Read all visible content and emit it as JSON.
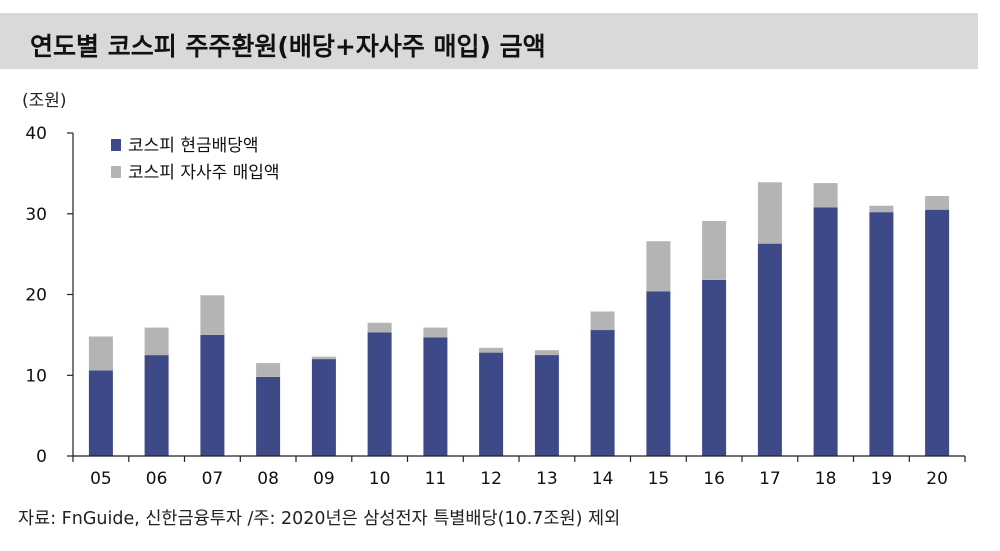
{
  "title": "연도별 코스피 주주환원(배당+자사주 매입) 금액",
  "unit_label": "(조원)",
  "source_note": "자료: FnGuide, 신한금융투자 /주: 2020년은 삼성전자 특별배당(10.7조원) 제외",
  "colors": {
    "dividend": "#3d4a87",
    "buyback": "#b4b4b4",
    "title_bg": "#d9d9d9",
    "axis": "#222222"
  },
  "chart_data": {
    "type": "bar",
    "stacked": true,
    "categories": [
      "05",
      "06",
      "07",
      "08",
      "09",
      "10",
      "11",
      "12",
      "13",
      "14",
      "15",
      "16",
      "17",
      "18",
      "19",
      "20"
    ],
    "series": [
      {
        "name": "코스피 현금배당액",
        "color": "#3d4a87",
        "values": [
          10.6,
          12.5,
          15.0,
          9.8,
          12.0,
          15.3,
          14.7,
          12.8,
          12.5,
          15.6,
          20.4,
          21.8,
          26.3,
          30.8,
          30.2,
          30.5
        ]
      },
      {
        "name": "코스피 자사주 매입액",
        "color": "#b4b4b4",
        "values": [
          4.2,
          3.4,
          4.9,
          1.7,
          0.3,
          1.2,
          1.2,
          0.6,
          0.6,
          2.3,
          6.2,
          7.3,
          7.6,
          3.0,
          0.8,
          1.7
        ]
      }
    ],
    "ylim": [
      0,
      40
    ],
    "yticks": [
      0,
      10,
      20,
      30,
      40
    ],
    "ylabel": "(조원)",
    "xlabel": "",
    "grid": false,
    "legend_position": "top-left"
  }
}
